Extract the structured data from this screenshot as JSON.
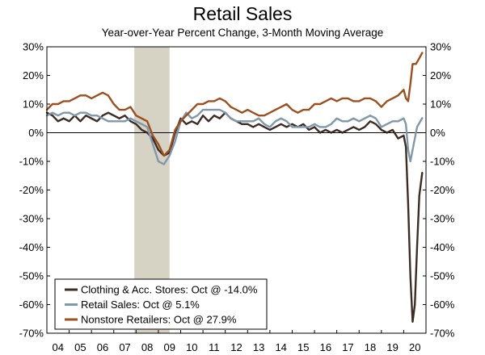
{
  "chart_data": {
    "type": "line",
    "title": "Retail Sales",
    "subtitle": "Year-over-Year Percent Change, 3-Month Moving Average",
    "ylim": [
      -70,
      30
    ],
    "yticks": [
      30,
      20,
      10,
      0,
      -10,
      -20,
      -30,
      -40,
      -50,
      -60,
      -70
    ],
    "ytick_labels": [
      "30%",
      "20%",
      "10%",
      "0%",
      "-10%",
      "-20%",
      "-30%",
      "-40%",
      "-50%",
      "-60%",
      "-70%"
    ],
    "xlim": [
      2004,
      2021
    ],
    "xtick_labels": [
      "04",
      "05",
      "06",
      "07",
      "08",
      "09",
      "10",
      "11",
      "12",
      "13",
      "14",
      "15",
      "16",
      "17",
      "18",
      "19",
      "20"
    ],
    "recession": {
      "start": 2007.92,
      "end": 2009.5
    },
    "legend_position": "bottom-left",
    "series": [
      {
        "name": "Clothing & Acc. Stores: Oct @ -14.0%",
        "color": "#3d2b24",
        "points": [
          [
            2004.0,
            7
          ],
          [
            2004.25,
            6
          ],
          [
            2004.5,
            4
          ],
          [
            2004.75,
            5
          ],
          [
            2005.0,
            4
          ],
          [
            2005.25,
            6
          ],
          [
            2005.5,
            4
          ],
          [
            2005.75,
            6
          ],
          [
            2006.0,
            5
          ],
          [
            2006.25,
            4
          ],
          [
            2006.5,
            6
          ],
          [
            2006.75,
            7
          ],
          [
            2007.0,
            6
          ],
          [
            2007.25,
            5
          ],
          [
            2007.5,
            6
          ],
          [
            2007.75,
            4
          ],
          [
            2008.0,
            3
          ],
          [
            2008.25,
            1
          ],
          [
            2008.5,
            0
          ],
          [
            2008.75,
            -2
          ],
          [
            2009.0,
            -6
          ],
          [
            2009.25,
            -8
          ],
          [
            2009.5,
            -7
          ],
          [
            2009.75,
            0
          ],
          [
            2010.0,
            5
          ],
          [
            2010.25,
            3
          ],
          [
            2010.5,
            4
          ],
          [
            2010.75,
            3
          ],
          [
            2011.0,
            6
          ],
          [
            2011.25,
            4
          ],
          [
            2011.5,
            6
          ],
          [
            2011.75,
            5
          ],
          [
            2012.0,
            7
          ],
          [
            2012.25,
            5
          ],
          [
            2012.5,
            4
          ],
          [
            2012.75,
            3
          ],
          [
            2013.0,
            3
          ],
          [
            2013.25,
            2
          ],
          [
            2013.5,
            3
          ],
          [
            2013.75,
            2
          ],
          [
            2014.0,
            1
          ],
          [
            2014.25,
            2
          ],
          [
            2014.5,
            3
          ],
          [
            2014.75,
            2
          ],
          [
            2015.0,
            3
          ],
          [
            2015.25,
            2
          ],
          [
            2015.5,
            3
          ],
          [
            2015.75,
            1
          ],
          [
            2016.0,
            2
          ],
          [
            2016.25,
            0
          ],
          [
            2016.5,
            1
          ],
          [
            2016.75,
            0
          ],
          [
            2017.0,
            1
          ],
          [
            2017.25,
            0
          ],
          [
            2017.5,
            1
          ],
          [
            2017.75,
            2
          ],
          [
            2018.0,
            1
          ],
          [
            2018.25,
            2
          ],
          [
            2018.5,
            4
          ],
          [
            2018.75,
            3
          ],
          [
            2019.0,
            1
          ],
          [
            2019.25,
            0
          ],
          [
            2019.5,
            1
          ],
          [
            2019.75,
            -2
          ],
          [
            2020.0,
            -1
          ],
          [
            2020.1,
            -5
          ],
          [
            2020.2,
            -25
          ],
          [
            2020.3,
            -50
          ],
          [
            2020.4,
            -66
          ],
          [
            2020.5,
            -60
          ],
          [
            2020.6,
            -40
          ],
          [
            2020.7,
            -22
          ],
          [
            2020.83,
            -14
          ]
        ]
      },
      {
        "name": "Retail Sales: Oct @ 5.1%",
        "color": "#7f98aa",
        "points": [
          [
            2004.0,
            6
          ],
          [
            2004.25,
            7
          ],
          [
            2004.5,
            6
          ],
          [
            2004.75,
            7
          ],
          [
            2005.0,
            7
          ],
          [
            2005.25,
            6
          ],
          [
            2005.5,
            7
          ],
          [
            2005.75,
            7
          ],
          [
            2006.0,
            6
          ],
          [
            2006.25,
            6
          ],
          [
            2006.5,
            5
          ],
          [
            2006.75,
            4
          ],
          [
            2007.0,
            4
          ],
          [
            2007.25,
            4
          ],
          [
            2007.5,
            4
          ],
          [
            2007.75,
            5
          ],
          [
            2008.0,
            4
          ],
          [
            2008.25,
            3
          ],
          [
            2008.5,
            2
          ],
          [
            2008.75,
            -4
          ],
          [
            2009.0,
            -10
          ],
          [
            2009.25,
            -11
          ],
          [
            2009.5,
            -8
          ],
          [
            2009.75,
            -3
          ],
          [
            2010.0,
            4
          ],
          [
            2010.25,
            7
          ],
          [
            2010.5,
            5
          ],
          [
            2010.75,
            6
          ],
          [
            2011.0,
            8
          ],
          [
            2011.25,
            8
          ],
          [
            2011.5,
            8
          ],
          [
            2011.75,
            8
          ],
          [
            2012.0,
            7
          ],
          [
            2012.25,
            5
          ],
          [
            2012.5,
            4
          ],
          [
            2012.75,
            4
          ],
          [
            2013.0,
            4
          ],
          [
            2013.25,
            4
          ],
          [
            2013.5,
            5
          ],
          [
            2013.75,
            3
          ],
          [
            2014.0,
            2
          ],
          [
            2014.25,
            4
          ],
          [
            2014.5,
            5
          ],
          [
            2014.75,
            4
          ],
          [
            2015.0,
            2
          ],
          [
            2015.25,
            2
          ],
          [
            2015.5,
            2
          ],
          [
            2015.75,
            2
          ],
          [
            2016.0,
            3
          ],
          [
            2016.25,
            2
          ],
          [
            2016.5,
            2
          ],
          [
            2016.75,
            3
          ],
          [
            2017.0,
            5
          ],
          [
            2017.25,
            4
          ],
          [
            2017.5,
            4
          ],
          [
            2017.75,
            5
          ],
          [
            2018.0,
            4
          ],
          [
            2018.25,
            5
          ],
          [
            2018.5,
            6
          ],
          [
            2018.75,
            5
          ],
          [
            2019.0,
            2
          ],
          [
            2019.25,
            3
          ],
          [
            2019.5,
            4
          ],
          [
            2019.75,
            4
          ],
          [
            2020.0,
            5
          ],
          [
            2020.1,
            3
          ],
          [
            2020.2,
            -6
          ],
          [
            2020.3,
            -10
          ],
          [
            2020.45,
            -4
          ],
          [
            2020.6,
            2
          ],
          [
            2020.83,
            5.1
          ]
        ]
      },
      {
        "name": "Nonstore Retailers: Oct @ 27.9%",
        "color": "#9c4f1f",
        "points": [
          [
            2004.0,
            8
          ],
          [
            2004.25,
            10
          ],
          [
            2004.5,
            10
          ],
          [
            2004.75,
            11
          ],
          [
            2005.0,
            11
          ],
          [
            2005.25,
            12
          ],
          [
            2005.5,
            13
          ],
          [
            2005.75,
            13
          ],
          [
            2006.0,
            12
          ],
          [
            2006.25,
            13
          ],
          [
            2006.5,
            14
          ],
          [
            2006.75,
            13
          ],
          [
            2007.0,
            10
          ],
          [
            2007.25,
            8
          ],
          [
            2007.5,
            8
          ],
          [
            2007.75,
            9
          ],
          [
            2008.0,
            6
          ],
          [
            2008.25,
            5
          ],
          [
            2008.5,
            4
          ],
          [
            2008.75,
            -1
          ],
          [
            2009.0,
            -4
          ],
          [
            2009.25,
            -8
          ],
          [
            2009.5,
            -6
          ],
          [
            2009.75,
            1
          ],
          [
            2010.0,
            4
          ],
          [
            2010.25,
            6
          ],
          [
            2010.5,
            8
          ],
          [
            2010.75,
            10
          ],
          [
            2011.0,
            10
          ],
          [
            2011.25,
            11
          ],
          [
            2011.5,
            11
          ],
          [
            2011.75,
            12
          ],
          [
            2012.0,
            11
          ],
          [
            2012.25,
            9
          ],
          [
            2012.5,
            8
          ],
          [
            2012.75,
            7
          ],
          [
            2013.0,
            8
          ],
          [
            2013.25,
            7
          ],
          [
            2013.5,
            6
          ],
          [
            2013.75,
            6
          ],
          [
            2014.0,
            7
          ],
          [
            2014.25,
            8
          ],
          [
            2014.5,
            9
          ],
          [
            2014.75,
            10
          ],
          [
            2015.0,
            8
          ],
          [
            2015.25,
            7
          ],
          [
            2015.5,
            8
          ],
          [
            2015.75,
            8
          ],
          [
            2016.0,
            10
          ],
          [
            2016.25,
            10
          ],
          [
            2016.5,
            11
          ],
          [
            2016.75,
            12
          ],
          [
            2017.0,
            11
          ],
          [
            2017.25,
            12
          ],
          [
            2017.5,
            12
          ],
          [
            2017.75,
            11
          ],
          [
            2018.0,
            11
          ],
          [
            2018.25,
            12
          ],
          [
            2018.5,
            12
          ],
          [
            2018.75,
            11
          ],
          [
            2019.0,
            9
          ],
          [
            2019.25,
            11
          ],
          [
            2019.5,
            12
          ],
          [
            2019.75,
            13
          ],
          [
            2020.0,
            15
          ],
          [
            2020.1,
            12
          ],
          [
            2020.2,
            11
          ],
          [
            2020.3,
            17
          ],
          [
            2020.4,
            24
          ],
          [
            2020.55,
            24
          ],
          [
            2020.7,
            26
          ],
          [
            2020.83,
            27.9
          ]
        ]
      }
    ]
  }
}
